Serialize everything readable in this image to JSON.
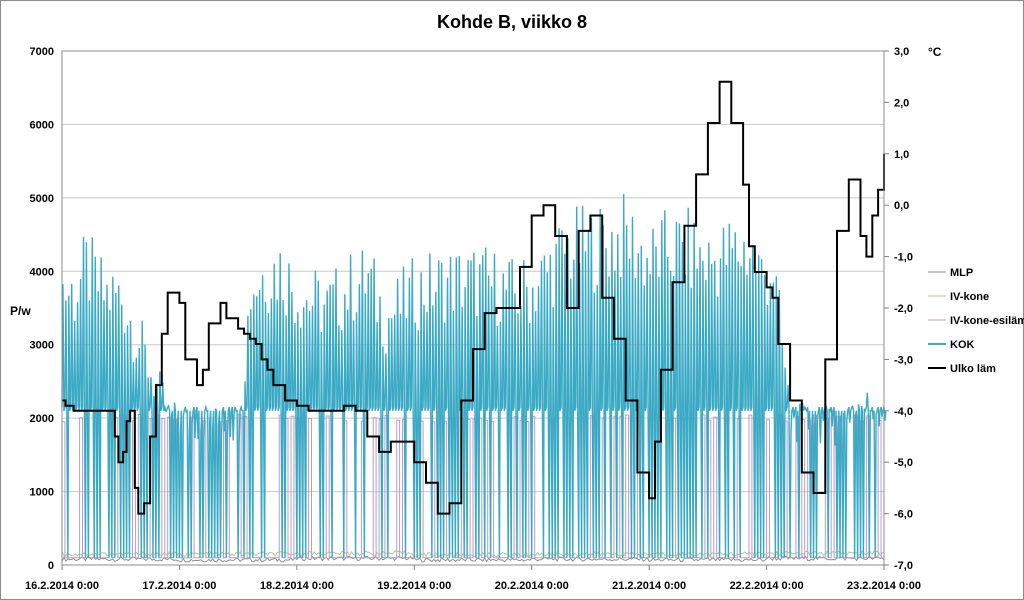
{
  "chart_data": {
    "type": "line",
    "title": "Kohde B, viikko 8",
    "ylabel": "P/w",
    "y2label": "°C",
    "ylim": [
      0,
      7000
    ],
    "y2lim": [
      -7.0,
      3.0
    ],
    "xlim": [
      "2014-02-16 00:00",
      "2014-02-23 00:00"
    ],
    "grid": true,
    "legend_position": "right",
    "yticks": [
      "0",
      "1000",
      "2000",
      "3000",
      "4000",
      "5000",
      "6000",
      "7000"
    ],
    "y2ticks": [
      "-7,0",
      "-6,0",
      "-5,0",
      "-4,0",
      "-3,0",
      "-2,0",
      "-1,0",
      "0,0",
      "1,0",
      "2,0",
      "3,0"
    ],
    "xticks": [
      "16.2.2014 0:00",
      "17.2.2014 0:00",
      "18.2.2014 0:00",
      "19.2.2014 0:00",
      "20.2.2014 0:00",
      "21.2.2014 0:00",
      "22.2.2014 0:00",
      "23.2.2014 0:00"
    ],
    "series": [
      {
        "name": "MLP",
        "axis": "left",
        "color": "#8e8e8e",
        "days": [
          0,
          1,
          2,
          3,
          4,
          5,
          6,
          7
        ],
        "values": [
          80,
          70,
          90,
          70,
          80,
          70,
          90,
          80
        ]
      },
      {
        "name": "IV-kone",
        "axis": "left",
        "color": "#b7c98a",
        "days": [
          0,
          1,
          2,
          3,
          4,
          5,
          6,
          7
        ],
        "values": [
          150,
          150,
          160,
          140,
          150,
          150,
          160,
          150
        ]
      },
      {
        "name": "IV-kone-esiläm",
        "axis": "left",
        "color": "#b79ccb",
        "note_values": "switches between ~100 W (off) and ~2000 W (on) in pulses",
        "days": [
          0,
          1,
          2,
          3,
          4,
          5,
          6,
          7
        ],
        "values": [
          100,
          100,
          100,
          100,
          100,
          100,
          100,
          100
        ]
      },
      {
        "name": "KOK",
        "axis": "left",
        "color": "#3aa9c4",
        "base": 100,
        "pulse_low": 2150,
        "peaks": [
          [
            0.0,
            4300
          ],
          [
            0.1,
            4200
          ],
          [
            0.2,
            4600
          ],
          [
            0.35,
            4200
          ],
          [
            0.5,
            4150
          ],
          [
            0.9,
            2300
          ],
          [
            1.0,
            2200
          ],
          [
            1.5,
            2200
          ],
          [
            1.6,
            4300
          ],
          [
            1.7,
            4500
          ],
          [
            1.85,
            4600
          ],
          [
            2.0,
            4200
          ],
          [
            2.25,
            4000
          ],
          [
            2.45,
            4300
          ],
          [
            2.6,
            4450
          ],
          [
            2.75,
            3800
          ],
          [
            3.0,
            4250
          ],
          [
            3.3,
            4400
          ],
          [
            3.6,
            4400
          ],
          [
            3.85,
            4200
          ],
          [
            4.0,
            4300
          ],
          [
            4.3,
            4900
          ],
          [
            4.55,
            4950
          ],
          [
            4.8,
            5100
          ],
          [
            5.0,
            4700
          ],
          [
            5.15,
            4900
          ],
          [
            5.3,
            4900
          ],
          [
            5.5,
            4700
          ],
          [
            5.7,
            4850
          ],
          [
            5.85,
            4900
          ],
          [
            5.95,
            4500
          ],
          [
            6.05,
            4600
          ],
          [
            6.2,
            2200
          ],
          [
            6.4,
            2200
          ],
          [
            6.6,
            2150
          ],
          [
            6.75,
            2500
          ],
          [
            7.0,
            2400
          ]
        ]
      },
      {
        "name": "Ulko läm",
        "axis": "right",
        "color": "#000000",
        "days": [
          0.0,
          0.03,
          0.1,
          0.15,
          0.35,
          0.45,
          0.48,
          0.52,
          0.55,
          0.58,
          0.62,
          0.65,
          0.7,
          0.75,
          0.8,
          0.85,
          0.9,
          1.0,
          1.05,
          1.15,
          1.2,
          1.25,
          1.35,
          1.4,
          1.5,
          1.55,
          1.6,
          1.65,
          1.7,
          1.75,
          1.8,
          1.9,
          2.0,
          2.1,
          2.2,
          2.3,
          2.4,
          2.5,
          2.6,
          2.7,
          2.8,
          2.9,
          3.0,
          3.1,
          3.2,
          3.3,
          3.4,
          3.5,
          3.6,
          3.7,
          3.8,
          3.9,
          4.0,
          4.1,
          4.2,
          4.3,
          4.4,
          4.5,
          4.6,
          4.7,
          4.8,
          4.9,
          5.0,
          5.05,
          5.1,
          5.2,
          5.3,
          5.4,
          5.5,
          5.6,
          5.7,
          5.8,
          5.85,
          5.9,
          6.0,
          6.05,
          6.1,
          6.2,
          6.3,
          6.4,
          6.5,
          6.6,
          6.7,
          6.8,
          6.85,
          6.9,
          6.95,
          7.0
        ],
        "values": [
          -3.8,
          -3.9,
          -4.0,
          -4.0,
          -4.0,
          -4.5,
          -5.0,
          -4.8,
          -4.2,
          -4.0,
          -5.5,
          -6.0,
          -5.8,
          -4.5,
          -3.5,
          -2.5,
          -1.7,
          -1.9,
          -3.0,
          -3.5,
          -3.2,
          -2.3,
          -1.9,
          -2.2,
          -2.4,
          -2.5,
          -2.6,
          -2.7,
          -3.0,
          -3.2,
          -3.5,
          -3.8,
          -3.9,
          -4.0,
          -4.0,
          -4.0,
          -3.9,
          -4.0,
          -4.5,
          -4.8,
          -4.6,
          -4.6,
          -5.0,
          -5.4,
          -6.0,
          -5.8,
          -3.8,
          -2.8,
          -2.1,
          -2.0,
          -2.0,
          -1.2,
          -0.2,
          0.0,
          -0.6,
          -2.0,
          -0.5,
          -0.2,
          -1.8,
          -2.6,
          -3.8,
          -5.2,
          -5.7,
          -4.6,
          -3.2,
          -1.5,
          -0.4,
          0.6,
          1.6,
          2.4,
          1.6,
          0.4,
          -0.8,
          -1.3,
          -1.6,
          -1.8,
          -2.7,
          -3.8,
          -5.2,
          -5.6,
          -3.0,
          -0.5,
          0.5,
          -0.6,
          -1.0,
          -0.2,
          0.3,
          1.0
        ]
      }
    ]
  }
}
